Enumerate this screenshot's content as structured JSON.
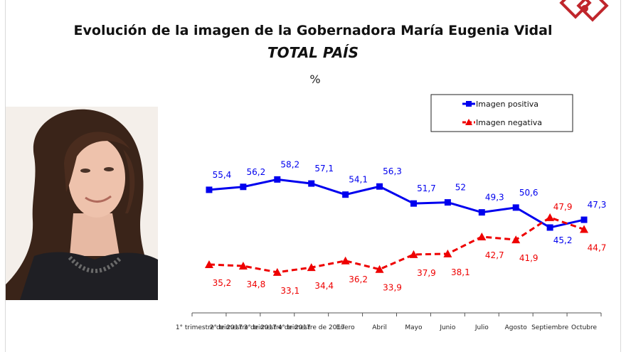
{
  "title": "Evolución de la imagen de la Gobernadora María Eugenia Vidal",
  "subtitle": "TOTAL PAÍS",
  "unit": "%",
  "colors": {
    "positive": "#0000ee",
    "negative": "#ee0000",
    "axis": "#555555",
    "logo": "#c0262c"
  },
  "icons": {
    "logo": "consulting-firm-logo",
    "photo": "governor-portrait"
  },
  "chart_data": {
    "type": "line",
    "title": "Evolución de la imagen de la Gobernadora María Eugenia Vidal",
    "subtitle": "TOTAL PAÍS",
    "ylabel": "%",
    "xlabel": "",
    "ylim": [
      0,
      100
    ],
    "grid": false,
    "legend_position": "top-right",
    "categories": [
      "1° trimestre de 2017",
      "2° trimestre de 2017",
      "3° trimestre de 2017",
      "4° trimestre de 2017",
      "Enero",
      "Abril",
      "Mayo",
      "Junio",
      "Julio",
      "Agosto",
      "Septiembre",
      "Octubre"
    ],
    "series": [
      {
        "name": "Imagen positiva",
        "color": "#0000ee",
        "marker": "square",
        "line": "solid",
        "values": [
          55.4,
          56.2,
          58.2,
          57.1,
          54.1,
          56.3,
          51.7,
          52,
          49.3,
          50.6,
          45.2,
          47.3
        ],
        "labels": [
          "55,4",
          "56,2",
          "58,2",
          "57,1",
          "54,1",
          "56,3",
          "51,7",
          "52",
          "49,3",
          "50,6",
          "45,2",
          "47,3"
        ]
      },
      {
        "name": "Imagen negativa",
        "color": "#ee0000",
        "marker": "triangle",
        "line": "dashed",
        "values": [
          35.2,
          34.8,
          33.1,
          34.4,
          36.2,
          33.9,
          37.9,
          38.1,
          42.7,
          41.9,
          47.9,
          44.7
        ],
        "labels": [
          "35,2",
          "34,8",
          "33,1",
          "34,4",
          "36,2",
          "33,9",
          "37,9",
          "38,1",
          "42,7",
          "41,9",
          "47,9",
          "44,7"
        ]
      }
    ]
  }
}
